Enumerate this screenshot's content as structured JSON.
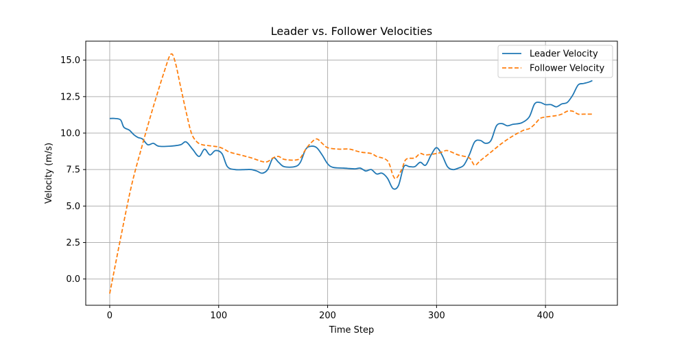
{
  "chart_data": {
    "type": "line",
    "title": "Leader vs. Follower Velocities",
    "xlabel": "Time Step",
    "ylabel": "Velocity (m/s)",
    "xlim": [
      -22,
      466
    ],
    "ylim": [
      -1.8,
      16.3
    ],
    "xticks": [
      0,
      100,
      200,
      300,
      400
    ],
    "yticks": [
      0.0,
      2.5,
      5.0,
      7.5,
      10.0,
      12.5,
      15.0
    ],
    "ytick_labels": [
      "0.0",
      "2.5",
      "5.0",
      "7.5",
      "10.0",
      "12.5",
      "15.0"
    ],
    "grid": true,
    "legend_position": "upper right",
    "series": [
      {
        "name": "Leader Velocity",
        "color": "#1f77b4",
        "style": "solid",
        "points": [
          [
            0,
            11.0
          ],
          [
            5,
            11.0
          ],
          [
            10,
            10.9
          ],
          [
            13,
            10.4
          ],
          [
            18,
            10.2
          ],
          [
            22,
            9.9
          ],
          [
            26,
            9.7
          ],
          [
            30,
            9.6
          ],
          [
            35,
            9.2
          ],
          [
            40,
            9.3
          ],
          [
            45,
            9.1
          ],
          [
            55,
            9.1
          ],
          [
            65,
            9.2
          ],
          [
            70,
            9.4
          ],
          [
            76,
            8.9
          ],
          [
            82,
            8.4
          ],
          [
            87,
            8.9
          ],
          [
            92,
            8.5
          ],
          [
            97,
            8.8
          ],
          [
            103,
            8.6
          ],
          [
            108,
            7.7
          ],
          [
            115,
            7.5
          ],
          [
            125,
            7.5
          ],
          [
            130,
            7.5
          ],
          [
            135,
            7.4
          ],
          [
            140,
            7.25
          ],
          [
            145,
            7.5
          ],
          [
            150,
            8.3
          ],
          [
            155,
            8.0
          ],
          [
            160,
            7.7
          ],
          [
            170,
            7.7
          ],
          [
            175,
            8.0
          ],
          [
            180,
            8.9
          ],
          [
            185,
            9.1
          ],
          [
            190,
            9.0
          ],
          [
            195,
            8.5
          ],
          [
            200,
            7.9
          ],
          [
            205,
            7.65
          ],
          [
            215,
            7.6
          ],
          [
            225,
            7.55
          ],
          [
            230,
            7.6
          ],
          [
            235,
            7.4
          ],
          [
            240,
            7.5
          ],
          [
            245,
            7.2
          ],
          [
            250,
            7.25
          ],
          [
            255,
            6.9
          ],
          [
            260,
            6.2
          ],
          [
            265,
            6.4
          ],
          [
            270,
            7.7
          ],
          [
            275,
            7.7
          ],
          [
            280,
            7.7
          ],
          [
            285,
            8.0
          ],
          [
            290,
            7.8
          ],
          [
            295,
            8.5
          ],
          [
            300,
            9.0
          ],
          [
            305,
            8.5
          ],
          [
            310,
            7.7
          ],
          [
            315,
            7.5
          ],
          [
            320,
            7.6
          ],
          [
            325,
            7.8
          ],
          [
            330,
            8.5
          ],
          [
            335,
            9.4
          ],
          [
            340,
            9.5
          ],
          [
            345,
            9.3
          ],
          [
            350,
            9.5
          ],
          [
            355,
            10.5
          ],
          [
            360,
            10.65
          ],
          [
            365,
            10.5
          ],
          [
            370,
            10.6
          ],
          [
            378,
            10.7
          ],
          [
            385,
            11.1
          ],
          [
            390,
            12.0
          ],
          [
            395,
            12.1
          ],
          [
            400,
            11.95
          ],
          [
            405,
            11.95
          ],
          [
            410,
            11.8
          ],
          [
            415,
            12.0
          ],
          [
            420,
            12.1
          ],
          [
            425,
            12.6
          ],
          [
            430,
            13.3
          ],
          [
            435,
            13.4
          ],
          [
            440,
            13.5
          ],
          [
            443,
            13.6
          ]
        ]
      },
      {
        "name": "Follower Velocity",
        "color": "#ff7f0e",
        "style": "dashed",
        "points": [
          [
            0,
            -1.0
          ],
          [
            10,
            2.8
          ],
          [
            20,
            6.4
          ],
          [
            30,
            9.2
          ],
          [
            40,
            11.8
          ],
          [
            50,
            14.2
          ],
          [
            56,
            15.4
          ],
          [
            60,
            14.9
          ],
          [
            65,
            13.2
          ],
          [
            70,
            11.5
          ],
          [
            75,
            10.0
          ],
          [
            80,
            9.4
          ],
          [
            85,
            9.2
          ],
          [
            90,
            9.15
          ],
          [
            95,
            9.1
          ],
          [
            100,
            9.05
          ],
          [
            105,
            8.9
          ],
          [
            110,
            8.7
          ],
          [
            120,
            8.5
          ],
          [
            130,
            8.3
          ],
          [
            140,
            8.05
          ],
          [
            145,
            8.05
          ],
          [
            150,
            8.3
          ],
          [
            155,
            8.4
          ],
          [
            160,
            8.2
          ],
          [
            170,
            8.15
          ],
          [
            175,
            8.3
          ],
          [
            180,
            8.9
          ],
          [
            185,
            9.35
          ],
          [
            190,
            9.6
          ],
          [
            195,
            9.3
          ],
          [
            200,
            9.0
          ],
          [
            210,
            8.9
          ],
          [
            220,
            8.9
          ],
          [
            230,
            8.7
          ],
          [
            240,
            8.6
          ],
          [
            245,
            8.4
          ],
          [
            255,
            8.1
          ],
          [
            260,
            7.1
          ],
          [
            263,
            6.9
          ],
          [
            268,
            7.5
          ],
          [
            272,
            8.2
          ],
          [
            280,
            8.3
          ],
          [
            285,
            8.6
          ],
          [
            290,
            8.5
          ],
          [
            300,
            8.6
          ],
          [
            305,
            8.7
          ],
          [
            310,
            8.8
          ],
          [
            320,
            8.5
          ],
          [
            330,
            8.3
          ],
          [
            335,
            7.8
          ],
          [
            340,
            8.1
          ],
          [
            350,
            8.7
          ],
          [
            360,
            9.3
          ],
          [
            370,
            9.8
          ],
          [
            380,
            10.2
          ],
          [
            385,
            10.3
          ],
          [
            390,
            10.6
          ],
          [
            395,
            11.0
          ],
          [
            400,
            11.1
          ],
          [
            410,
            11.2
          ],
          [
            415,
            11.3
          ],
          [
            420,
            11.5
          ],
          [
            425,
            11.5
          ],
          [
            430,
            11.3
          ],
          [
            435,
            11.3
          ],
          [
            443,
            11.3
          ]
        ]
      }
    ]
  }
}
